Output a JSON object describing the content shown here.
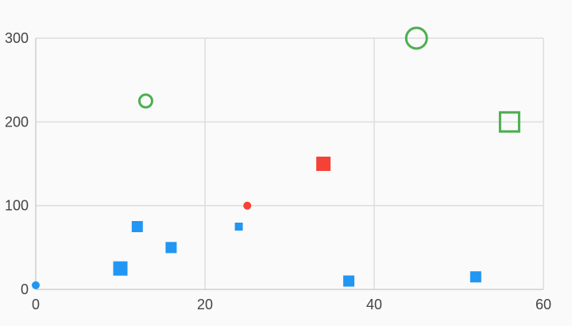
{
  "chart_data": {
    "type": "scatter",
    "title": "",
    "xlabel": "",
    "ylabel": "",
    "xlim": [
      0,
      60
    ],
    "ylim": [
      0,
      300
    ],
    "x_ticks": [
      0,
      20,
      40,
      60
    ],
    "y_ticks": [
      0,
      100,
      200,
      300
    ],
    "x_tick_labels": [
      "0",
      "20",
      "40",
      "60"
    ],
    "y_tick_labels": [
      "0",
      "100",
      "200",
      "300"
    ],
    "grid": true,
    "legend": "none",
    "colors": {
      "blue": "#2196f3",
      "red": "#f44336",
      "green": "#4caf50"
    },
    "points": [
      {
        "x": 0,
        "y": 5,
        "shape": "circle",
        "style": "filled",
        "size": "small",
        "color": "#2196f3"
      },
      {
        "x": 10,
        "y": 25,
        "shape": "square",
        "style": "filled",
        "size": "medium",
        "color": "#2196f3"
      },
      {
        "x": 12,
        "y": 75,
        "shape": "square",
        "style": "filled",
        "size": "small",
        "color": "#2196f3"
      },
      {
        "x": 16,
        "y": 50,
        "shape": "square",
        "style": "filled",
        "size": "small",
        "color": "#2196f3"
      },
      {
        "x": 24,
        "y": 75,
        "shape": "square",
        "style": "filled",
        "size": "tiny",
        "color": "#2196f3"
      },
      {
        "x": 37,
        "y": 10,
        "shape": "square",
        "style": "filled",
        "size": "small",
        "color": "#2196f3"
      },
      {
        "x": 52,
        "y": 15,
        "shape": "square",
        "style": "filled",
        "size": "small",
        "color": "#2196f3"
      },
      {
        "x": 25,
        "y": 100,
        "shape": "circle",
        "style": "filled",
        "size": "small",
        "color": "#f44336"
      },
      {
        "x": 34,
        "y": 150,
        "shape": "square",
        "style": "filled",
        "size": "medium",
        "color": "#f44336"
      },
      {
        "x": 13,
        "y": 225,
        "shape": "circle",
        "style": "outline",
        "size": "medium",
        "color": "#4caf50"
      },
      {
        "x": 45,
        "y": 300,
        "shape": "circle",
        "style": "outline",
        "size": "large",
        "color": "#4caf50"
      },
      {
        "x": 56,
        "y": 200,
        "shape": "square",
        "style": "outline",
        "size": "large",
        "color": "#4caf50"
      }
    ]
  }
}
